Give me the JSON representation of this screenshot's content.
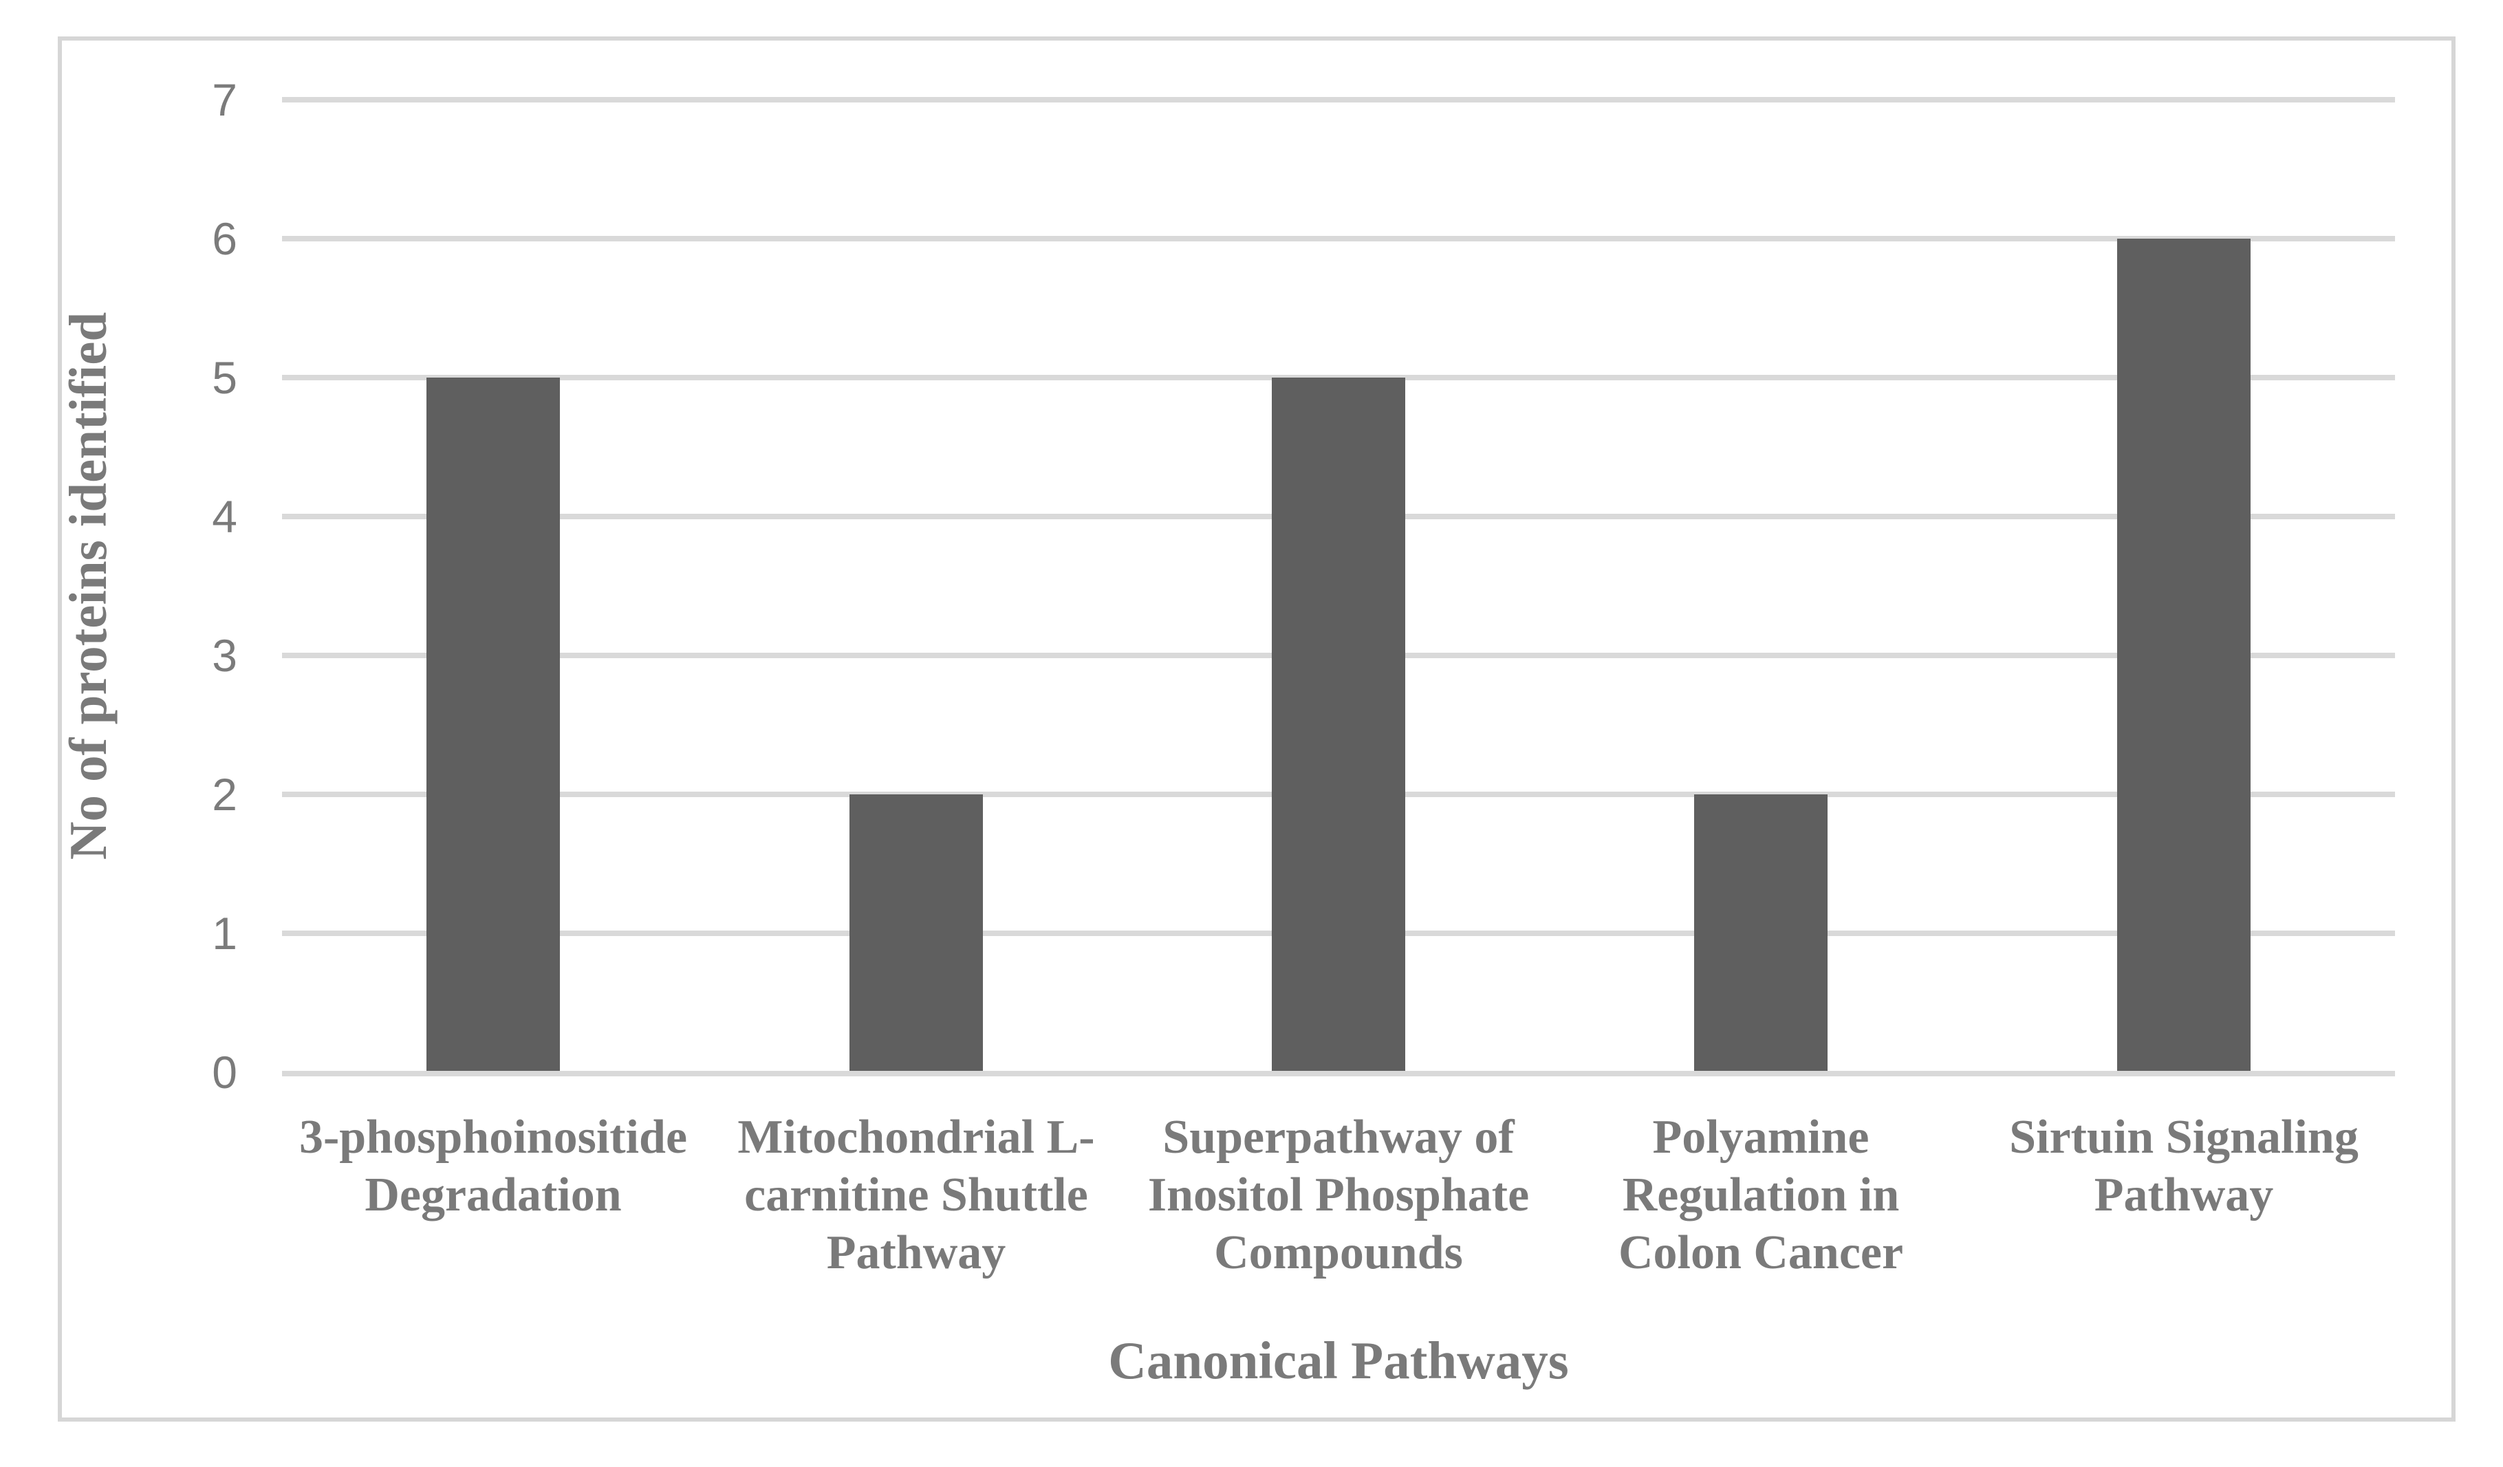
{
  "chart_data": {
    "type": "bar",
    "title": "",
    "xlabel": "Canonical Pathways",
    "ylabel": "No of proteins identified",
    "categories": [
      "3-phosphoinositide Degradation",
      "Mitochondrial L-carnitine Shuttle Pathway",
      "Superpathway of Inositol Phosphate Compounds",
      "Polyamine Regulation in Colon Cancer",
      "Sirtuin Signaling Pathway"
    ],
    "category_lines": [
      [
        "3-phosphoinositide",
        "Degradation"
      ],
      [
        "Mitochondrial L-",
        "carnitine Shuttle",
        "Pathway"
      ],
      [
        "Superpathway of",
        "Inositol Phosphate",
        "Compounds"
      ],
      [
        "Polyamine",
        "Regulation in",
        "Colon Cancer"
      ],
      [
        "Sirtuin Signaling",
        "Pathway"
      ]
    ],
    "values": [
      5,
      2,
      5,
      2,
      6
    ],
    "yticks": [
      0,
      1,
      2,
      3,
      4,
      5,
      6,
      7
    ],
    "ylim": [
      0,
      7
    ],
    "grid": "horizontal",
    "legend": "none",
    "colors": {
      "bar": "#5f5f5f",
      "gridline": "#d9d9d9",
      "axis_line": "#d9d9d9",
      "tick_text": "#7b7b7b",
      "label_text": "#7a7a7a",
      "frame_border": "#d6d6d6",
      "background": "#ffffff"
    }
  }
}
